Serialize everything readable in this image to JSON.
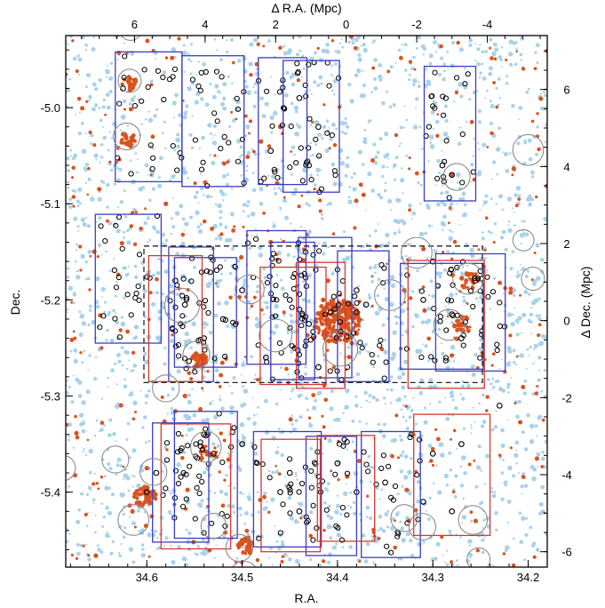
{
  "chart_data": {
    "type": "scatter",
    "title": "",
    "axes": {
      "bottom": {
        "label": "R.A.",
        "range": [
          34.685,
          34.18
        ],
        "ticks": [
          34.6,
          34.5,
          34.4,
          34.3,
          34.2
        ]
      },
      "left": {
        "label": "Dec.",
        "range": [
          -5.478,
          -4.925
        ],
        "ticks": [
          -5.0,
          -5.1,
          -5.2,
          -5.3,
          -5.4
        ]
      },
      "top": {
        "label": "Δ R.A. (Mpc)",
        "range": [
          7.95,
          -5.7
        ],
        "ticks": [
          "6",
          "4",
          "2",
          "0",
          "-2",
          "-4"
        ],
        "tick_values": [
          6,
          4,
          2,
          0,
          -2,
          -4
        ]
      },
      "right": {
        "label": "Δ Dec. (Mpc)",
        "range": [
          -6.4,
          7.4
        ],
        "ticks": [
          "6",
          "4",
          "2",
          "0",
          "-2",
          "-4",
          "-6"
        ],
        "tick_values": [
          6,
          4,
          2,
          0,
          -2,
          -4,
          -6
        ]
      }
    },
    "grid": false,
    "legend": "none",
    "colors": {
      "field_points": "#a9d2ea",
      "red_points": "#d9531e",
      "open_circles": "#000000",
      "blue_boxes": "#3a3cc4",
      "red_boxes": "#d23a32",
      "dashed_box": "#222222",
      "grey_circles": "#8c8c8c"
    },
    "series": [
      {
        "kind": "rect",
        "style": "blue",
        "boxes": [
          [
            34.633,
            34.563,
            -4.942,
            -5.077
          ],
          [
            34.563,
            34.498,
            -4.946,
            -5.082
          ],
          [
            34.483,
            34.432,
            -4.948,
            -5.08
          ],
          [
            34.457,
            34.398,
            -4.951,
            -5.088
          ],
          [
            34.309,
            34.255,
            -4.957,
            -5.097
          ],
          [
            34.654,
            34.585,
            -5.111,
            -5.245
          ],
          [
            34.577,
            34.53,
            -5.145,
            -5.285
          ],
          [
            34.571,
            34.506,
            -5.156,
            -5.27
          ],
          [
            34.495,
            34.433,
            -5.128,
            -5.267
          ],
          [
            34.47,
            34.424,
            -5.14,
            -5.283
          ],
          [
            34.441,
            34.385,
            -5.135,
            -5.281
          ],
          [
            34.4,
            34.346,
            -5.149,
            -5.285
          ],
          [
            34.334,
            34.247,
            -5.162,
            -5.272
          ],
          [
            34.297,
            34.224,
            -5.152,
            -5.274
          ],
          [
            34.594,
            34.535,
            -5.328,
            -5.452
          ],
          [
            34.571,
            34.505,
            -5.316,
            -5.448
          ],
          [
            34.488,
            34.417,
            -5.337,
            -5.457
          ],
          [
            34.433,
            34.38,
            -5.342,
            -5.466
          ],
          [
            34.375,
            34.313,
            -5.337,
            -5.468
          ]
        ]
      },
      {
        "kind": "rect",
        "style": "red",
        "boxes": [
          [
            34.598,
            34.542,
            -5.154,
            -5.285
          ],
          [
            34.481,
            34.412,
            -5.166,
            -5.288
          ],
          [
            34.443,
            34.392,
            -5.161,
            -5.292
          ],
          [
            34.326,
            34.246,
            -5.159,
            -5.292
          ],
          [
            34.585,
            34.512,
            -5.329,
            -5.459
          ],
          [
            34.48,
            34.418,
            -5.345,
            -5.462
          ],
          [
            34.421,
            34.361,
            -5.341,
            -5.451
          ],
          [
            34.32,
            34.24,
            -5.319,
            -5.445
          ]
        ]
      },
      {
        "kind": "rect",
        "style": "dashed",
        "boxes": [
          [
            34.603,
            34.248,
            -5.144,
            -5.286
          ]
        ]
      },
      {
        "kind": "circle",
        "style": "grey",
        "circles": [
          [
            34.618,
            -4.972,
            0.012
          ],
          [
            34.621,
            -5.03,
            0.014
          ],
          [
            34.563,
            -5.206,
            0.018
          ],
          [
            34.548,
            -5.257,
            0.014
          ],
          [
            34.492,
            -5.189,
            0.015
          ],
          [
            34.465,
            -5.237,
            0.017
          ],
          [
            34.397,
            -5.251,
            0.018
          ],
          [
            34.345,
            -5.195,
            0.016
          ],
          [
            34.317,
            -5.151,
            0.016
          ],
          [
            34.283,
            -5.226,
            0.016
          ],
          [
            34.263,
            -5.178,
            0.016
          ],
          [
            34.2,
            -5.044,
            0.016
          ],
          [
            34.275,
            -5.072,
            0.014
          ],
          [
            34.195,
            -5.178,
            0.012
          ],
          [
            34.205,
            -5.138,
            0.011
          ],
          [
            34.58,
            -5.292,
            0.014
          ],
          [
            34.633,
            -5.366,
            0.014
          ],
          [
            34.593,
            -5.379,
            0.014
          ],
          [
            34.538,
            -5.353,
            0.016
          ],
          [
            34.614,
            -5.429,
            0.016
          ],
          [
            34.53,
            -5.435,
            0.013
          ],
          [
            34.503,
            -5.458,
            0.014
          ],
          [
            34.33,
            -5.427,
            0.014
          ],
          [
            34.311,
            -5.436,
            0.014
          ],
          [
            34.258,
            -5.429,
            0.015
          ],
          [
            34.252,
            -5.47,
            0.012
          ],
          [
            34.498,
            -5.487,
            0.015
          ],
          [
            34.688,
            -5.375,
            0.013
          ],
          [
            34.617,
            -4.918,
            0.012
          ]
        ]
      },
      {
        "kind": "points",
        "style": "field",
        "points": [
          [
            34.67,
            -4.95
          ],
          [
            34.64,
            -5.0
          ],
          [
            34.6,
            -5.06
          ],
          [
            34.56,
            -5.01
          ],
          [
            34.54,
            -4.955
          ],
          [
            34.52,
            -5.09
          ],
          [
            34.48,
            -5.1
          ],
          [
            34.44,
            -5.02
          ],
          [
            34.36,
            -4.98
          ],
          [
            34.34,
            -5.06
          ],
          [
            34.32,
            -5.11
          ],
          [
            34.3,
            -5.005
          ],
          [
            34.24,
            -4.965
          ],
          [
            34.21,
            -5.1
          ],
          [
            34.66,
            -5.15
          ],
          [
            34.63,
            -5.24
          ],
          [
            34.6,
            -5.3
          ],
          [
            34.55,
            -5.32
          ],
          [
            34.5,
            -5.31
          ],
          [
            34.44,
            -5.3
          ],
          [
            34.38,
            -5.31
          ],
          [
            34.33,
            -5.12
          ],
          [
            34.28,
            -5.3
          ],
          [
            34.22,
            -5.25
          ],
          [
            34.2,
            -5.32
          ],
          [
            34.67,
            -5.3
          ],
          [
            34.65,
            -5.46
          ],
          [
            34.56,
            -5.47
          ],
          [
            34.45,
            -5.47
          ],
          [
            34.37,
            -5.472
          ],
          [
            34.3,
            -5.47
          ],
          [
            34.22,
            -5.41
          ],
          [
            34.19,
            -5.46
          ],
          [
            34.675,
            -5.05
          ],
          [
            34.19,
            -4.935
          ]
        ]
      },
      {
        "kind": "points",
        "style": "red",
        "points": [
          [
            34.618,
            -4.97
          ],
          [
            34.622,
            -5.03
          ],
          [
            34.617,
            -5.04
          ],
          [
            34.541,
            -5.258
          ],
          [
            34.545,
            -5.262
          ],
          [
            34.55,
            -5.27
          ],
          [
            34.4,
            -5.22
          ],
          [
            34.405,
            -5.23
          ],
          [
            34.392,
            -5.228
          ],
          [
            34.415,
            -5.2
          ],
          [
            34.38,
            -5.235
          ],
          [
            34.41,
            -5.18
          ],
          [
            34.395,
            -5.21
          ],
          [
            34.385,
            -5.245
          ],
          [
            34.425,
            -5.24
          ],
          [
            34.27,
            -5.225
          ],
          [
            34.265,
            -5.18
          ],
          [
            34.28,
            -5.07
          ],
          [
            34.6,
            -5.375
          ],
          [
            34.615,
            -5.42
          ],
          [
            34.535,
            -5.36
          ],
          [
            34.495,
            -5.46
          ],
          [
            34.5,
            -5.45
          ],
          [
            34.325,
            -5.43
          ],
          [
            34.255,
            -5.43
          ],
          [
            34.56,
            -5.3
          ],
          [
            34.47,
            -5.14
          ],
          [
            34.33,
            -5.19
          ],
          [
            34.58,
            -5.1
          ],
          [
            34.46,
            -5.02
          ]
        ]
      },
      {
        "kind": "points",
        "style": "open",
        "points": [
          [
            34.625,
            -4.98
          ],
          [
            34.44,
            -4.99
          ],
          [
            34.42,
            -5.02
          ],
          [
            34.43,
            -5.06
          ],
          [
            34.47,
            -5.045
          ],
          [
            34.28,
            -5.07
          ],
          [
            34.29,
            -5.06
          ],
          [
            34.56,
            -5.205
          ],
          [
            34.57,
            -5.18
          ],
          [
            34.5,
            -5.19
          ],
          [
            34.45,
            -5.2
          ],
          [
            34.44,
            -5.21
          ],
          [
            34.43,
            -5.225
          ],
          [
            34.38,
            -5.19
          ],
          [
            34.37,
            -5.205
          ],
          [
            34.3,
            -5.16
          ],
          [
            34.31,
            -5.2
          ],
          [
            34.28,
            -5.215
          ],
          [
            34.27,
            -5.24
          ],
          [
            34.25,
            -5.17
          ],
          [
            34.54,
            -5.24
          ],
          [
            34.52,
            -5.22
          ],
          [
            34.475,
            -5.26
          ],
          [
            34.42,
            -5.27
          ],
          [
            34.59,
            -5.38
          ],
          [
            34.6,
            -5.4
          ],
          [
            34.54,
            -5.34
          ],
          [
            34.53,
            -5.36
          ],
          [
            34.45,
            -5.38
          ],
          [
            34.46,
            -5.4
          ],
          [
            34.44,
            -5.42
          ],
          [
            34.38,
            -5.4
          ],
          [
            34.4,
            -5.37
          ],
          [
            34.35,
            -5.39
          ],
          [
            34.3,
            -5.36
          ],
          [
            34.27,
            -5.35
          ],
          [
            34.28,
            -5.42
          ],
          [
            34.31,
            -5.41
          ],
          [
            34.23,
            -5.31
          ],
          [
            34.5,
            -5.35
          ]
        ]
      }
    ]
  }
}
